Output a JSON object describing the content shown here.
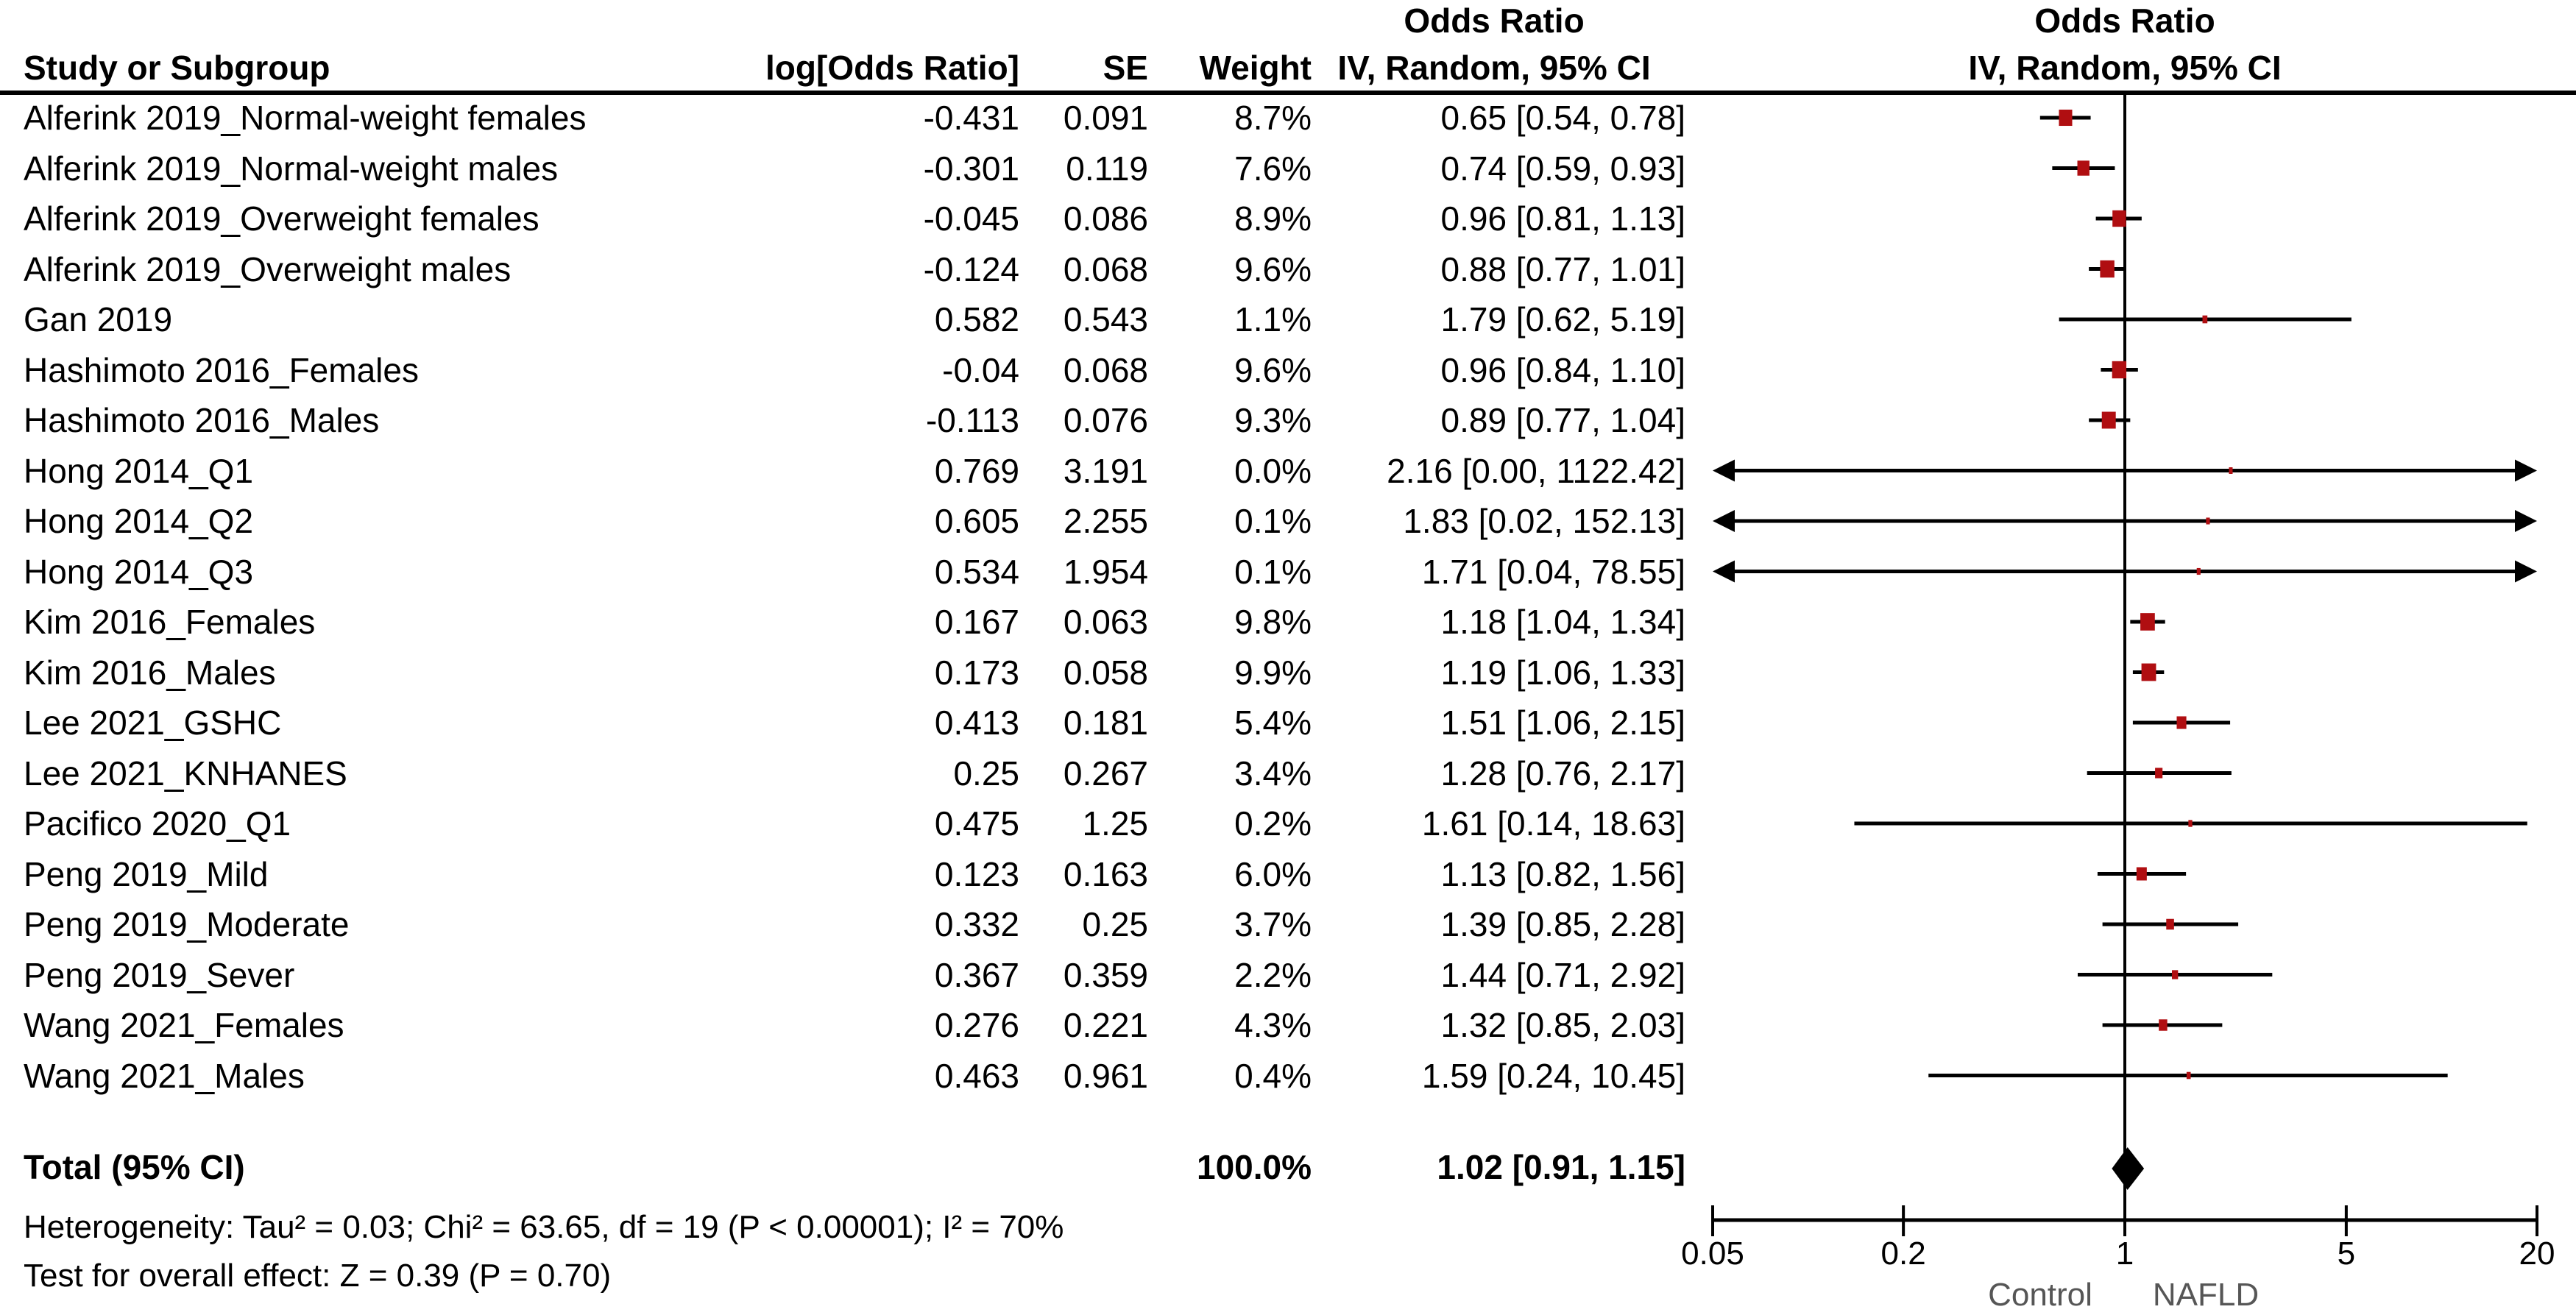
{
  "header": {
    "col_study": "Study or Subgroup",
    "col_log_or": "log[Odds Ratio]",
    "col_se": "SE",
    "col_weight": "Weight",
    "col_or_line1": "Odds Ratio",
    "col_or_line2": "IV, Random, 95% CI",
    "plot_or_line1": "Odds Ratio",
    "plot_or_line2": "IV, Random, 95% CI"
  },
  "colors": {
    "marker": "#b00e11",
    "line": "#000000",
    "diamond": "#000000",
    "favours_text": "#565656"
  },
  "chart_data": {
    "type": "forest",
    "x_scale": "log",
    "x_range": [
      0.05,
      20
    ],
    "axis_ticks": [
      "0.05",
      "0.2",
      "1",
      "5",
      "20"
    ],
    "no_effect_line": 1,
    "favours_left": "Control",
    "favours_right": "NAFLD",
    "studies": [
      {
        "name": "Alferink 2019_Normal-weight females",
        "log_or": "-0.431",
        "se": "0.091",
        "weight": "8.7%",
        "ci_text": "0.65 [0.54, 0.78]",
        "or": 0.65,
        "lo": 0.54,
        "hi": 0.78,
        "weight_pct": 8.7
      },
      {
        "name": "Alferink 2019_Normal-weight males",
        "log_or": "-0.301",
        "se": "0.119",
        "weight": "7.6%",
        "ci_text": "0.74 [0.59, 0.93]",
        "or": 0.74,
        "lo": 0.59,
        "hi": 0.93,
        "weight_pct": 7.6
      },
      {
        "name": "Alferink 2019_Overweight females",
        "log_or": "-0.045",
        "se": "0.086",
        "weight": "8.9%",
        "ci_text": "0.96 [0.81, 1.13]",
        "or": 0.96,
        "lo": 0.81,
        "hi": 1.13,
        "weight_pct": 8.9
      },
      {
        "name": "Alferink 2019_Overweight males",
        "log_or": "-0.124",
        "se": "0.068",
        "weight": "9.6%",
        "ci_text": "0.88 [0.77, 1.01]",
        "or": 0.88,
        "lo": 0.77,
        "hi": 1.01,
        "weight_pct": 9.6
      },
      {
        "name": "Gan 2019",
        "log_or": "0.582",
        "se": "0.543",
        "weight": "1.1%",
        "ci_text": "1.79 [0.62, 5.19]",
        "or": 1.79,
        "lo": 0.62,
        "hi": 5.19,
        "weight_pct": 1.1
      },
      {
        "name": "Hashimoto 2016_Females",
        "log_or": "-0.04",
        "se": "0.068",
        "weight": "9.6%",
        "ci_text": "0.96 [0.84, 1.10]",
        "or": 0.96,
        "lo": 0.84,
        "hi": 1.1,
        "weight_pct": 9.6
      },
      {
        "name": "Hashimoto 2016_Males",
        "log_or": "-0.113",
        "se": "0.076",
        "weight": "9.3%",
        "ci_text": "0.89 [0.77, 1.04]",
        "or": 0.89,
        "lo": 0.77,
        "hi": 1.04,
        "weight_pct": 9.3
      },
      {
        "name": "Hong 2014_Q1",
        "log_or": "0.769",
        "se": "3.191",
        "weight": "0.0%",
        "ci_text": "2.16 [0.00, 1122.42]",
        "or": 2.16,
        "lo": 0.0,
        "hi": 1122.42,
        "weight_pct": 0.0
      },
      {
        "name": "Hong 2014_Q2",
        "log_or": "0.605",
        "se": "2.255",
        "weight": "0.1%",
        "ci_text": "1.83 [0.02, 152.13]",
        "or": 1.83,
        "lo": 0.02,
        "hi": 152.13,
        "weight_pct": 0.1
      },
      {
        "name": "Hong 2014_Q3",
        "log_or": "0.534",
        "se": "1.954",
        "weight": "0.1%",
        "ci_text": "1.71 [0.04, 78.55]",
        "or": 1.71,
        "lo": 0.04,
        "hi": 78.55,
        "weight_pct": 0.1
      },
      {
        "name": "Kim 2016_Females",
        "log_or": "0.167",
        "se": "0.063",
        "weight": "9.8%",
        "ci_text": "1.18 [1.04, 1.34]",
        "or": 1.18,
        "lo": 1.04,
        "hi": 1.34,
        "weight_pct": 9.8
      },
      {
        "name": "Kim 2016_Males",
        "log_or": "0.173",
        "se": "0.058",
        "weight": "9.9%",
        "ci_text": "1.19 [1.06, 1.33]",
        "or": 1.19,
        "lo": 1.06,
        "hi": 1.33,
        "weight_pct": 9.9
      },
      {
        "name": "Lee 2021_GSHC",
        "log_or": "0.413",
        "se": "0.181",
        "weight": "5.4%",
        "ci_text": "1.51 [1.06, 2.15]",
        "or": 1.51,
        "lo": 1.06,
        "hi": 2.15,
        "weight_pct": 5.4
      },
      {
        "name": "Lee 2021_KNHANES",
        "log_or": "0.25",
        "se": "0.267",
        "weight": "3.4%",
        "ci_text": "1.28 [0.76, 2.17]",
        "or": 1.28,
        "lo": 0.76,
        "hi": 2.17,
        "weight_pct": 3.4
      },
      {
        "name": "Pacifico 2020_Q1",
        "log_or": "0.475",
        "se": "1.25",
        "weight": "0.2%",
        "ci_text": "1.61 [0.14, 18.63]",
        "or": 1.61,
        "lo": 0.14,
        "hi": 18.63,
        "weight_pct": 0.2
      },
      {
        "name": "Peng 2019_Mild",
        "log_or": "0.123",
        "se": "0.163",
        "weight": "6.0%",
        "ci_text": "1.13 [0.82, 1.56]",
        "or": 1.13,
        "lo": 0.82,
        "hi": 1.56,
        "weight_pct": 6.0
      },
      {
        "name": "Peng 2019_Moderate",
        "log_or": "0.332",
        "se": "0.25",
        "weight": "3.7%",
        "ci_text": "1.39 [0.85, 2.28]",
        "or": 1.39,
        "lo": 0.85,
        "hi": 2.28,
        "weight_pct": 3.7
      },
      {
        "name": "Peng 2019_Sever",
        "log_or": "0.367",
        "se": "0.359",
        "weight": "2.2%",
        "ci_text": "1.44 [0.71, 2.92]",
        "or": 1.44,
        "lo": 0.71,
        "hi": 2.92,
        "weight_pct": 2.2
      },
      {
        "name": "Wang 2021_Females",
        "log_or": "0.276",
        "se": "0.221",
        "weight": "4.3%",
        "ci_text": "1.32 [0.85, 2.03]",
        "or": 1.32,
        "lo": 0.85,
        "hi": 2.03,
        "weight_pct": 4.3
      },
      {
        "name": "Wang 2021_Males",
        "log_or": "0.463",
        "se": "0.961",
        "weight": "0.4%",
        "ci_text": "1.59 [0.24, 10.45]",
        "or": 1.59,
        "lo": 0.24,
        "hi": 10.45,
        "weight_pct": 0.4
      }
    ],
    "total": {
      "label": "Total (95% CI)",
      "weight": "100.0%",
      "ci_text": "1.02 [0.91, 1.15]",
      "or": 1.02,
      "lo": 0.91,
      "hi": 1.15
    },
    "heterogeneity": "Heterogeneity: Tau² = 0.03; Chi² = 63.65, df = 19 (P < 0.00001); I² = 70%",
    "overall_effect": "Test for overall effect: Z = 0.39 (P = 0.70)"
  }
}
